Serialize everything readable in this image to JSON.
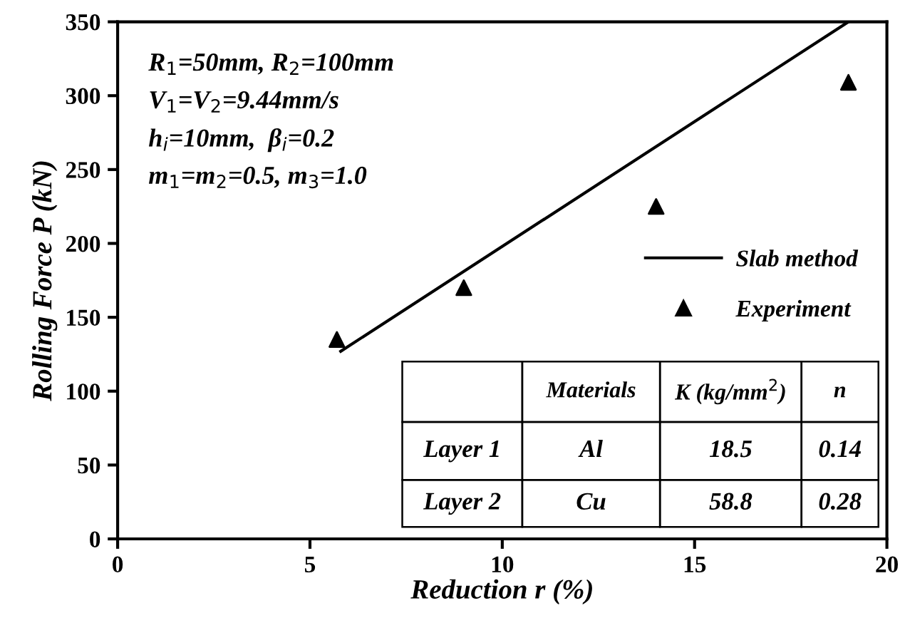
{
  "chart_data": {
    "type": "scatter",
    "xlabel": "Reduction r (%)",
    "ylabel": "Rolling Force P (kN)",
    "xlim": [
      0,
      20
    ],
    "ylim": [
      0,
      350
    ],
    "xticks": [
      0,
      5,
      10,
      15,
      20
    ],
    "yticks": [
      0,
      50,
      100,
      150,
      200,
      250,
      300,
      350
    ],
    "grid": false,
    "legend": "right",
    "series": [
      {
        "name": "Slab method",
        "type": "line",
        "color": "#000000",
        "marker": "none",
        "line_style": "solid",
        "x": [
          5.8,
          19.0
        ],
        "values": [
          127,
          350
        ]
      },
      {
        "name": "Experiment",
        "color": "#000000",
        "marker": "triangle",
        "x": [
          5.7,
          9.0,
          14.0,
          19.0
        ],
        "values": [
          135,
          170,
          225,
          309
        ]
      }
    ],
    "annotations": [
      "R$_{1}$=50mm, R$_{2}$=100mm",
      "V$_{1}$=V$_{2}$=9.44mm/s",
      "h$_{i}$=10mm,  β$_{i}$=0.2",
      "m$_{1}$=m$_{2}$=0.5, m$_{3}$=1.0",
      "Materials",
      "K (kg/mm$^{2}$)",
      "n",
      "Layer 1",
      "Al",
      "18.5",
      "0.14",
      "Layer 2",
      "Cu",
      "58.8",
      "0.28"
    ]
  }
}
